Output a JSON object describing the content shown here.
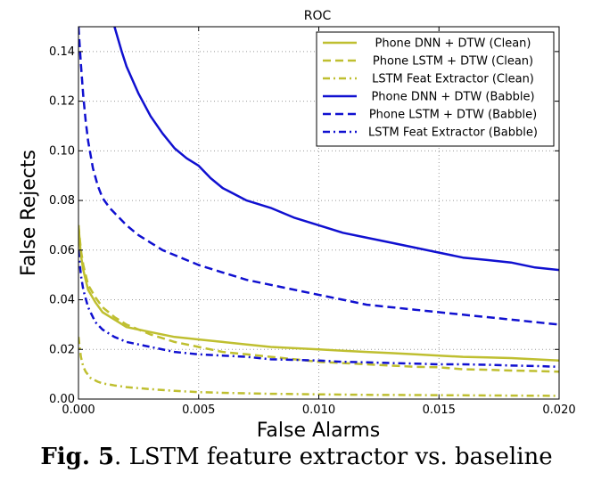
{
  "chart_data": {
    "type": "line",
    "title": "ROC",
    "xlabel": "False Alarms",
    "ylabel": "False Rejects",
    "xlim": [
      0.0,
      0.02
    ],
    "ylim": [
      0.0,
      0.15
    ],
    "xticks": [
      "0.000",
      "0.005",
      "0.010",
      "0.015",
      "0.020"
    ],
    "yticks": [
      "0.00",
      "0.02",
      "0.04",
      "0.06",
      "0.08",
      "0.10",
      "0.12",
      "0.14"
    ],
    "grid": true,
    "legend_position": "top-right",
    "series": [
      {
        "name": "Phone DNN + DTW (Clean)",
        "color": "#bfbf30",
        "dash": "solid",
        "x": [
          0.0,
          0.0001,
          0.0002,
          0.0004,
          0.0007,
          0.001,
          0.0015,
          0.002,
          0.0025,
          0.003,
          0.004,
          0.005,
          0.006,
          0.007,
          0.008,
          0.009,
          0.01,
          0.011,
          0.012,
          0.013,
          0.014,
          0.015,
          0.016,
          0.017,
          0.018,
          0.019,
          0.02
        ],
        "y": [
          0.07,
          0.058,
          0.052,
          0.044,
          0.039,
          0.035,
          0.032,
          0.029,
          0.028,
          0.027,
          0.025,
          0.024,
          0.023,
          0.022,
          0.021,
          0.0205,
          0.02,
          0.0195,
          0.019,
          0.0185,
          0.018,
          0.0175,
          0.017,
          0.0168,
          0.0165,
          0.016,
          0.0155
        ]
      },
      {
        "name": "Phone LSTM + DTW (Clean)",
        "color": "#bfbf30",
        "dash": "dashed",
        "x": [
          0.0,
          0.0001,
          0.0002,
          0.0004,
          0.0007,
          0.001,
          0.0015,
          0.002,
          0.0025,
          0.003,
          0.004,
          0.005,
          0.006,
          0.007,
          0.008,
          0.009,
          0.01,
          0.011,
          0.012,
          0.013,
          0.014,
          0.015,
          0.016,
          0.017,
          0.018,
          0.019,
          0.02
        ],
        "y": [
          0.07,
          0.06,
          0.054,
          0.046,
          0.041,
          0.037,
          0.033,
          0.03,
          0.028,
          0.026,
          0.023,
          0.021,
          0.019,
          0.018,
          0.017,
          0.016,
          0.015,
          0.0145,
          0.014,
          0.0135,
          0.013,
          0.0128,
          0.012,
          0.0118,
          0.0115,
          0.0113,
          0.011
        ]
      },
      {
        "name": "LSTM Feat Extractor (Clean)",
        "color": "#bfbf30",
        "dash": "dashdot",
        "x": [
          0.0,
          0.0001,
          0.0002,
          0.0003,
          0.0005,
          0.0008,
          0.001,
          0.0015,
          0.002,
          0.003,
          0.004,
          0.005,
          0.006,
          0.008,
          0.01,
          0.012,
          0.014,
          0.016,
          0.018,
          0.02
        ],
        "y": [
          0.025,
          0.017,
          0.013,
          0.011,
          0.0085,
          0.007,
          0.0063,
          0.0055,
          0.0048,
          0.004,
          0.0033,
          0.0028,
          0.0025,
          0.0021,
          0.0019,
          0.0017,
          0.0016,
          0.0015,
          0.0014,
          0.0013
        ]
      },
      {
        "name": "Phone DNN + DTW (Babble)",
        "color": "#1010d0",
        "dash": "solid",
        "x": [
          0.0015,
          0.0018,
          0.002,
          0.0025,
          0.003,
          0.0035,
          0.004,
          0.0045,
          0.005,
          0.0055,
          0.006,
          0.007,
          0.008,
          0.009,
          0.01,
          0.011,
          0.012,
          0.013,
          0.014,
          0.015,
          0.016,
          0.017,
          0.018,
          0.019,
          0.02
        ],
        "y": [
          0.15,
          0.14,
          0.134,
          0.123,
          0.114,
          0.107,
          0.101,
          0.097,
          0.094,
          0.089,
          0.085,
          0.08,
          0.077,
          0.073,
          0.07,
          0.067,
          0.065,
          0.063,
          0.061,
          0.059,
          0.057,
          0.056,
          0.055,
          0.053,
          0.052
        ]
      },
      {
        "name": "Phone LSTM + DTW (Babble)",
        "color": "#1010d0",
        "dash": "dashed",
        "x": [
          0.0,
          0.0001,
          0.0002,
          0.0003,
          0.0004,
          0.0006,
          0.0008,
          0.001,
          0.0013,
          0.0016,
          0.002,
          0.0025,
          0.003,
          0.0035,
          0.004,
          0.005,
          0.006,
          0.007,
          0.008,
          0.009,
          0.01,
          0.011,
          0.012,
          0.013,
          0.014,
          0.015,
          0.016,
          0.017,
          0.018,
          0.019,
          0.02
        ],
        "y": [
          0.15,
          0.135,
          0.122,
          0.112,
          0.104,
          0.093,
          0.086,
          0.081,
          0.077,
          0.074,
          0.07,
          0.066,
          0.063,
          0.06,
          0.058,
          0.054,
          0.051,
          0.048,
          0.046,
          0.044,
          0.042,
          0.04,
          0.038,
          0.037,
          0.036,
          0.035,
          0.034,
          0.033,
          0.032,
          0.031,
          0.03
        ]
      },
      {
        "name": "LSTM Feat Extractor (Babble)",
        "color": "#1010d0",
        "dash": "dashdot",
        "x": [
          0.0,
          0.0001,
          0.0002,
          0.0004,
          0.0007,
          0.001,
          0.0015,
          0.002,
          0.0025,
          0.003,
          0.004,
          0.005,
          0.006,
          0.007,
          0.008,
          0.009,
          0.01,
          0.011,
          0.012,
          0.013,
          0.014,
          0.015,
          0.016,
          0.017,
          0.018,
          0.019,
          0.02
        ],
        "y": [
          0.06,
          0.05,
          0.044,
          0.037,
          0.031,
          0.028,
          0.025,
          0.023,
          0.022,
          0.021,
          0.019,
          0.018,
          0.0175,
          0.017,
          0.016,
          0.0158,
          0.0155,
          0.015,
          0.0148,
          0.0145,
          0.0143,
          0.014,
          0.014,
          0.0138,
          0.0135,
          0.0133,
          0.013
        ]
      }
    ]
  },
  "caption": {
    "label": "Fig. 5",
    "text": ". LSTM feature extractor vs. baseline"
  }
}
